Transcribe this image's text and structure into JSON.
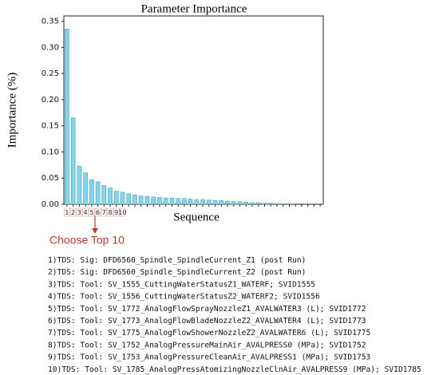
{
  "chart_data": {
    "type": "bar",
    "title": "Parameter Importance",
    "xlabel": "Sequence",
    "ylabel": "Importance (%)",
    "categories": [
      "1",
      "2",
      "3",
      "4",
      "5",
      "6",
      "7",
      "8",
      "9",
      "10",
      null,
      null,
      null,
      null,
      null,
      null,
      null,
      null,
      null,
      null,
      null,
      null,
      null,
      null,
      null,
      null,
      null,
      null,
      null,
      null,
      null,
      null,
      null,
      null,
      null,
      null,
      null,
      null,
      null,
      null,
      null,
      null
    ],
    "values": [
      0.335,
      0.165,
      0.073,
      0.06,
      0.047,
      0.043,
      0.036,
      0.031,
      0.025,
      0.023,
      0.02,
      0.018,
      0.016,
      0.015,
      0.014,
      0.013,
      0.012,
      0.012,
      0.011,
      0.011,
      0.01,
      0.009,
      0.009,
      0.008,
      0.007,
      0.007,
      0.006,
      0.005,
      0.005,
      0.004,
      0.003,
      0.003,
      0.002,
      0.002,
      0.001,
      0.001,
      0.001,
      0,
      0,
      0,
      0,
      0
    ],
    "color": "#86d4ea",
    "ylim": [
      0,
      0.36
    ],
    "yticks": [
      {
        "value": 0,
        "label": "0.00"
      },
      {
        "value": 0.05,
        "label": "0.05"
      },
      {
        "value": 0.1,
        "label": "0.10"
      },
      {
        "value": 0.15,
        "label": "0.15"
      },
      {
        "value": 0.2,
        "label": "0.20"
      },
      {
        "value": 0.25,
        "label": "0.25"
      },
      {
        "value": 0.3,
        "label": "0.30"
      },
      {
        "value": 0.35,
        "label": "0.35"
      }
    ],
    "annotation": "Choose Top 10"
  },
  "selection_list": [
    "1)TDS: Sig: DFD6560_Spindle_SpindleCurrent_Z1 (post Run)",
    "2)TDS: Sig: DFD6560_Spindle_SpindleCurrent_Z2 (post Run)",
    "3)TDS: Tool: SV_1555_CuttingWaterStatusZ1_WATERF; SVID1555",
    "4)TDS: Tool: SV_1556_CuttingWaterStatusZ2_WATERF2; SVID1556",
    "5)TDS: Tool: SV_1772_AnalogFlowSprayNozzleZ1_AVALWATER3 (L); SVID1772",
    "6)TDS: Tool: SV_1773_AnalogFlowBladeNozzleZ2_AVALWATER4 (L); SVID1773",
    "7)TDS: Tool: SV_1775_AnalogFlowShowerNozzleZ2_AVALWATER6 (L); SVID1775",
    "8)TDS: Tool: SV_1752_AnalogPressureMainAir_AVALPRESS0 (MPa); SVID1752",
    "9)TDS: Tool: SV_1753_AnalogPressureCleanAir_AVALPRESS1 (MPa); SVID1753",
    "10)TDS: Tool: SV_1785_AnalogPressAtomizingNozzleClnAir_AVALPRESS9 (MPa); SVID1785"
  ]
}
